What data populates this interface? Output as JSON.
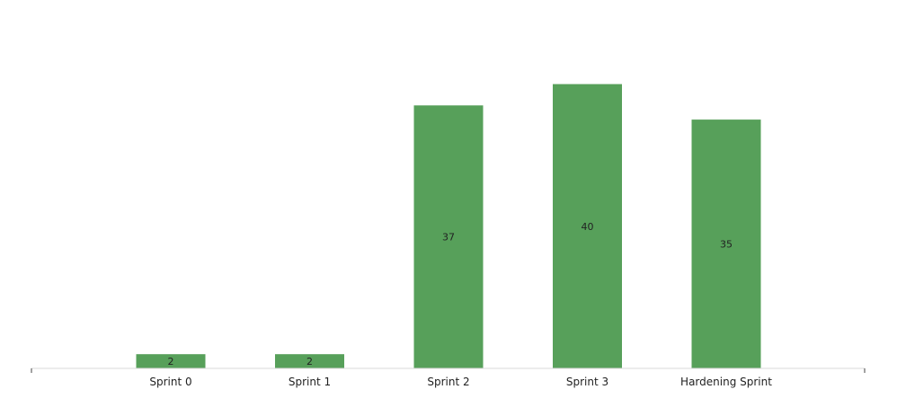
{
  "chart_data": {
    "type": "bar",
    "categories": [
      "Sprint 0",
      "Sprint 1",
      "Sprint 2",
      "Sprint 3",
      "Hardening Sprint"
    ],
    "values": [
      2,
      2,
      37,
      40,
      35
    ],
    "data_labels": [
      "2",
      "2",
      "37",
      "40",
      "35"
    ],
    "ylim": [
      0,
      45
    ],
    "grid": false,
    "legend": "none",
    "bar_color": "#57a05a",
    "axis_color": "#d9d9d9",
    "text_color": "#222222"
  }
}
